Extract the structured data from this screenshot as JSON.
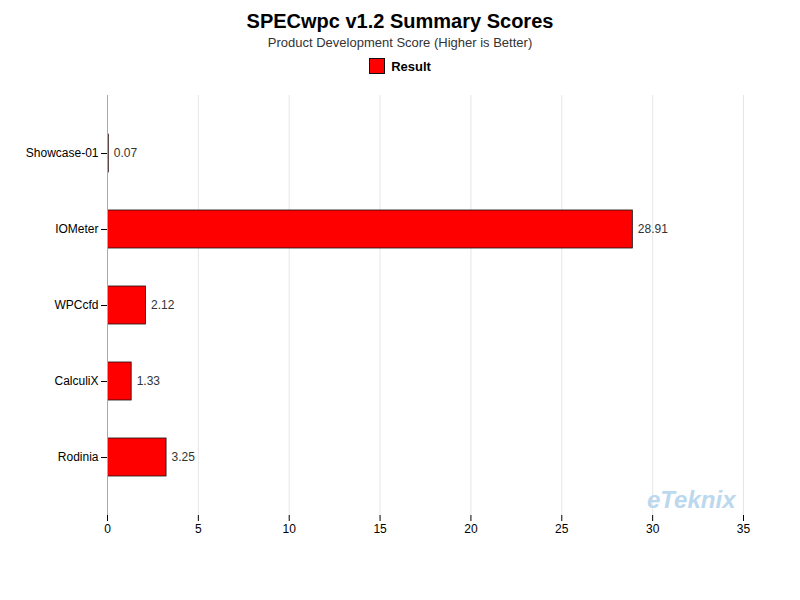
{
  "chart_data": {
    "type": "bar",
    "title": "SPECwpc v1.2 Summary Scores",
    "subtitle": "Product Development Score (Higher is Better)",
    "orientation": "horizontal",
    "categories": [
      "Showcase-01",
      "IOMeter",
      "WPCcfd",
      "CalculiX",
      "Rodinia"
    ],
    "series": [
      {
        "name": "Result",
        "color": "#ff0000",
        "values": [
          0.07,
          28.91,
          2.12,
          1.33,
          3.25
        ]
      }
    ],
    "xlim": [
      0,
      35
    ],
    "xticks": [
      0,
      5,
      10,
      15,
      20,
      25,
      30,
      35
    ],
    "grid": true,
    "legend": "top",
    "data_labels": true,
    "annotations": [
      "eTeknix"
    ]
  }
}
